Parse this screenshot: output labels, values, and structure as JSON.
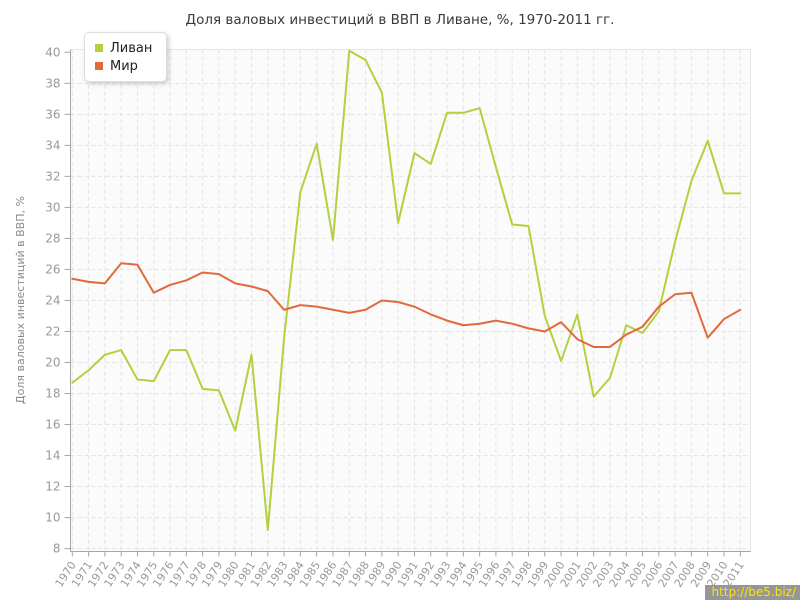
{
  "title": "Доля валовых инвестиций в ВВП в Ливане, %, 1970-2011 гг.",
  "watermark": "http://be5.biz/",
  "colors": {
    "lebanon": "#b2d13f",
    "world": "#e2693b",
    "axis": "#a5a5a5",
    "grid": "#e3e3e3",
    "tick_text": "#999999",
    "plot_bg": "#fbfbfb",
    "plot_border": "#e7e7e7"
  },
  "chart_data": {
    "type": "line",
    "title": "Доля валовых инвестиций в ВВП в Ливане, %, 1970-2011 гг.",
    "xlabel": "",
    "ylabel": "Доля валовых инвестиций в ВВП, %",
    "ylim": [
      8,
      40
    ],
    "ytick_step": 2,
    "grid": true,
    "legend_position": "top-left",
    "x": [
      1970,
      1971,
      1972,
      1973,
      1974,
      1975,
      1976,
      1977,
      1978,
      1979,
      1980,
      1981,
      1982,
      1983,
      1984,
      1985,
      1986,
      1987,
      1988,
      1989,
      1990,
      1991,
      1992,
      1993,
      1994,
      1995,
      1996,
      1997,
      1998,
      1999,
      2000,
      2001,
      2002,
      2003,
      2004,
      2005,
      2006,
      2007,
      2008,
      2009,
      2010,
      2011
    ],
    "series": [
      {
        "name": "Ливан",
        "color": "#b2d13f",
        "values": [
          18.7,
          19.5,
          20.5,
          20.8,
          18.9,
          18.8,
          20.8,
          20.8,
          18.3,
          18.2,
          15.6,
          20.5,
          9.2,
          21.6,
          31.0,
          34.1,
          27.9,
          40.1,
          39.5,
          37.4,
          29.0,
          33.5,
          32.8,
          36.1,
          36.1,
          36.4,
          32.6,
          28.9,
          28.8,
          23.0,
          20.1,
          23.1,
          17.8,
          19.0,
          22.4,
          21.9,
          23.3,
          27.8,
          31.7,
          34.3,
          30.9,
          30.9
        ]
      },
      {
        "name": "Мир",
        "color": "#e2693b",
        "values": [
          25.4,
          25.2,
          25.1,
          26.4,
          26.3,
          24.5,
          25.0,
          25.3,
          25.8,
          25.7,
          25.1,
          24.9,
          24.6,
          23.4,
          23.7,
          23.6,
          23.4,
          23.2,
          23.4,
          24.0,
          23.9,
          23.6,
          23.1,
          22.7,
          22.4,
          22.5,
          22.7,
          22.5,
          22.2,
          22.0,
          22.6,
          21.5,
          21.0,
          21.0,
          21.8,
          22.3,
          23.6,
          24.4,
          24.5,
          21.6,
          22.8,
          23.4
        ]
      }
    ]
  }
}
